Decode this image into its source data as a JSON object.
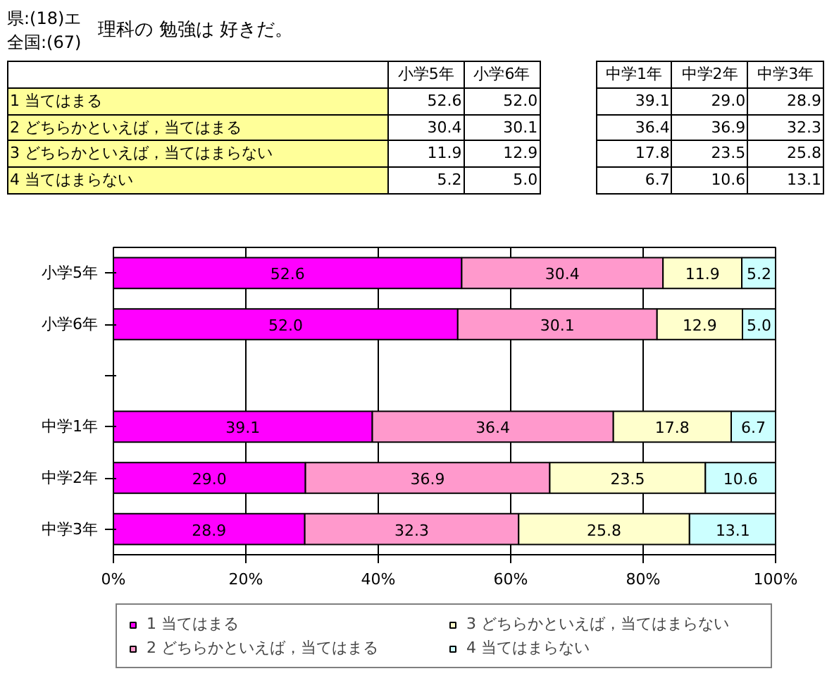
{
  "chart_data": {
    "type": "bar",
    "orientation": "horizontal",
    "stacked": true,
    "title": "理科の 勉強は 好きだ。",
    "annotations": [
      "県:(18)エ",
      "全国:(67)"
    ],
    "categories": [
      "小学5年",
      "小学6年",
      null,
      "中学1年",
      "中学2年",
      "中学3年"
    ],
    "series": [
      {
        "name": "1 当てはまる",
        "color": "#ff00ff",
        "values": [
          52.6,
          52.0,
          null,
          39.1,
          29.0,
          28.9
        ],
        "value_labels": [
          "52.6",
          "52.0",
          null,
          "39.1",
          "29.0",
          "28.9"
        ]
      },
      {
        "name": "2 どちらかといえば，当てはまる",
        "color": "#ff99cc",
        "values": [
          30.4,
          30.1,
          null,
          36.4,
          36.9,
          32.3
        ],
        "value_labels": [
          "30.4",
          "30.1",
          null,
          "36.4",
          "36.9",
          "32.3"
        ]
      },
      {
        "name": "3 どちらかといえば，当てはまらない",
        "color": "#ffffcc",
        "values": [
          11.9,
          12.9,
          null,
          17.8,
          23.5,
          25.8
        ],
        "value_labels": [
          "11.9",
          "12.9",
          null,
          "17.8",
          "23.5",
          "25.8"
        ]
      },
      {
        "name": "4 当てはまらない",
        "color": "#ccffff",
        "values": [
          5.2,
          5.0,
          null,
          6.7,
          10.6,
          13.1
        ],
        "value_labels": [
          "5.2",
          "5.0",
          null,
          "6.7",
          "10.6",
          "13.1"
        ]
      }
    ],
    "xlim": [
      0,
      100
    ],
    "xticks": [
      {
        "value": 0,
        "label": "0%"
      },
      {
        "value": 20,
        "label": "20%"
      },
      {
        "value": 40,
        "label": "40%"
      },
      {
        "value": 60,
        "label": "60%"
      },
      {
        "value": 80,
        "label": "80%"
      },
      {
        "value": 100,
        "label": "100%"
      }
    ],
    "grid": "x",
    "legend": "bottom"
  }
}
